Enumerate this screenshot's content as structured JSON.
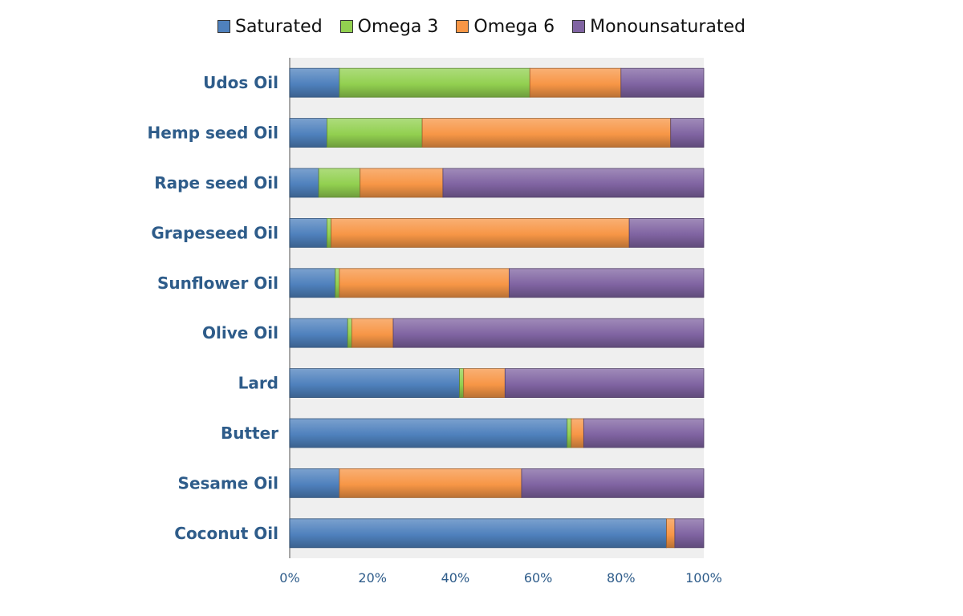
{
  "chart_data": {
    "type": "bar",
    "orientation": "horizontal",
    "stacked": "percent",
    "categories": [
      "Udos Oil",
      "Hemp seed Oil",
      "Rape seed Oil",
      "Grapeseed Oil",
      "Sunflower Oil",
      "Olive Oil",
      "Lard",
      "Butter",
      "Sesame Oil",
      "Coconut Oil"
    ],
    "series": [
      {
        "name": "Saturated",
        "color": "#4F81BD",
        "values": [
          12,
          9,
          7,
          9,
          11,
          14,
          41,
          67,
          12,
          91
        ]
      },
      {
        "name": "Omega 3",
        "color": "#92D050",
        "values": [
          46,
          23,
          10,
          1,
          1,
          1,
          1,
          1,
          0,
          0
        ]
      },
      {
        "name": "Omega 6",
        "color": "#F79646",
        "values": [
          22,
          60,
          20,
          72,
          41,
          10,
          10,
          3,
          44,
          2
        ]
      },
      {
        "name": "Monounsaturated",
        "color": "#8064A2",
        "values": [
          20,
          8,
          63,
          18,
          47,
          75,
          48,
          29,
          44,
          7
        ]
      }
    ],
    "x_ticks": [
      "0%",
      "20%",
      "40%",
      "60%",
      "80%",
      "100%"
    ],
    "xlim": [
      0,
      100
    ],
    "title": "",
    "xlabel": "",
    "ylabel": "",
    "legend_position": "top",
    "grid": false
  },
  "style": {
    "plot_background": "#EFEFEF",
    "category_label_color": "#2E5C8A",
    "tick_label_color": "#2E5C8A"
  }
}
